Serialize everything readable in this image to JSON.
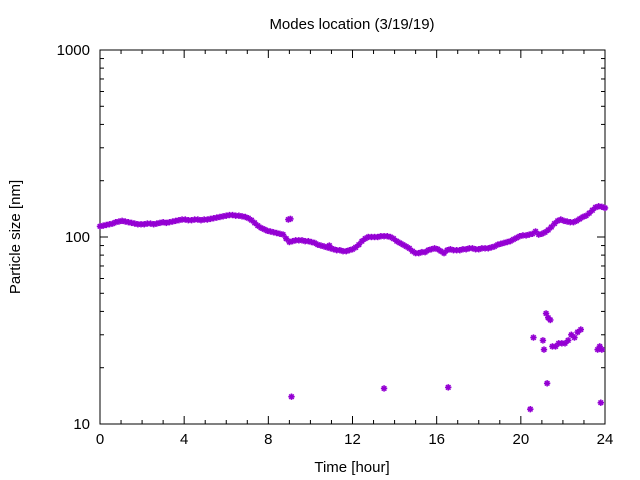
{
  "chart_data": {
    "type": "scatter",
    "title": "Modes location (3/19/19)",
    "xlabel": "Time [hour]",
    "ylabel": "Particle size [nm]",
    "xlim": [
      0,
      24
    ],
    "ylim": [
      10,
      1000
    ],
    "yscale": "log",
    "x_ticks": [
      0,
      4,
      8,
      12,
      16,
      20,
      24
    ],
    "x_tick_labels": [
      "0",
      "4",
      "8",
      "12",
      "16",
      "20",
      "24"
    ],
    "y_ticks": [
      10,
      100,
      1000
    ],
    "y_tick_labels": [
      "10",
      "100",
      "1000"
    ],
    "grid": false,
    "marker_color": "#9400d3",
    "series": [
      {
        "points": [
          [
            0.0,
            114
          ],
          [
            0.15,
            115
          ],
          [
            0.3,
            116
          ],
          [
            0.45,
            117
          ],
          [
            0.6,
            118
          ],
          [
            0.75,
            120
          ],
          [
            0.9,
            121
          ],
          [
            1.05,
            122
          ],
          [
            1.2,
            121
          ],
          [
            1.35,
            120
          ],
          [
            1.5,
            119
          ],
          [
            1.65,
            118
          ],
          [
            1.8,
            117
          ],
          [
            1.95,
            117
          ],
          [
            2.1,
            117
          ],
          [
            2.25,
            118
          ],
          [
            2.4,
            118
          ],
          [
            2.55,
            117
          ],
          [
            2.7,
            118
          ],
          [
            2.85,
            119
          ],
          [
            3.0,
            120
          ],
          [
            3.15,
            119
          ],
          [
            3.3,
            120
          ],
          [
            3.45,
            121
          ],
          [
            3.6,
            122
          ],
          [
            3.75,
            123
          ],
          [
            3.9,
            124
          ],
          [
            4.05,
            124
          ],
          [
            4.2,
            123
          ],
          [
            4.35,
            123
          ],
          [
            4.5,
            124
          ],
          [
            4.65,
            124
          ],
          [
            4.8,
            123
          ],
          [
            4.95,
            124
          ],
          [
            5.1,
            124
          ],
          [
            5.25,
            125
          ],
          [
            5.4,
            126
          ],
          [
            5.55,
            127
          ],
          [
            5.7,
            128
          ],
          [
            5.85,
            129
          ],
          [
            6.0,
            130
          ],
          [
            6.15,
            131
          ],
          [
            6.3,
            131
          ],
          [
            6.45,
            130
          ],
          [
            6.6,
            130
          ],
          [
            6.75,
            129
          ],
          [
            6.9,
            128
          ],
          [
            7.05,
            126
          ],
          [
            7.2,
            123
          ],
          [
            7.35,
            119
          ],
          [
            7.5,
            115
          ],
          [
            7.65,
            112
          ],
          [
            7.8,
            110
          ],
          [
            7.95,
            108
          ],
          [
            8.1,
            107
          ],
          [
            8.25,
            106
          ],
          [
            8.4,
            105
          ],
          [
            8.55,
            104
          ],
          [
            8.7,
            103
          ],
          [
            8.85,
            98
          ],
          [
            9.0,
            94
          ],
          [
            9.15,
            95
          ],
          [
            9.3,
            96
          ],
          [
            9.45,
            96
          ],
          [
            9.6,
            96
          ],
          [
            9.75,
            95
          ],
          [
            9.9,
            95
          ],
          [
            10.05,
            94
          ],
          [
            10.2,
            93
          ],
          [
            10.35,
            91
          ],
          [
            10.5,
            90
          ],
          [
            10.65,
            89
          ],
          [
            10.8,
            88
          ],
          [
            10.95,
            87
          ],
          [
            11.1,
            86
          ],
          [
            11.25,
            85
          ],
          [
            11.4,
            85
          ],
          [
            11.55,
            84
          ],
          [
            11.7,
            84
          ],
          [
            11.85,
            85
          ],
          [
            12.0,
            86
          ],
          [
            12.15,
            88
          ],
          [
            12.3,
            91
          ],
          [
            12.45,
            95
          ],
          [
            12.6,
            98
          ],
          [
            12.75,
            100
          ],
          [
            12.9,
            100
          ],
          [
            13.05,
            100
          ],
          [
            13.2,
            100
          ],
          [
            13.35,
            101
          ],
          [
            13.5,
            101
          ],
          [
            13.65,
            101
          ],
          [
            13.8,
            100
          ],
          [
            13.95,
            98
          ],
          [
            14.1,
            95
          ],
          [
            14.25,
            93
          ],
          [
            14.4,
            91
          ],
          [
            14.55,
            89
          ],
          [
            14.7,
            87
          ],
          [
            14.85,
            84
          ],
          [
            15.0,
            82
          ],
          [
            15.15,
            82
          ],
          [
            15.3,
            83
          ],
          [
            15.45,
            83
          ],
          [
            15.6,
            85
          ],
          [
            15.75,
            86
          ],
          [
            15.9,
            87
          ],
          [
            16.05,
            86
          ],
          [
            16.2,
            84
          ],
          [
            16.35,
            82
          ],
          [
            16.5,
            85
          ],
          [
            16.65,
            86
          ],
          [
            16.8,
            85
          ],
          [
            16.95,
            85
          ],
          [
            17.1,
            85
          ],
          [
            17.25,
            86
          ],
          [
            17.4,
            86
          ],
          [
            17.55,
            87
          ],
          [
            17.7,
            87
          ],
          [
            17.85,
            86
          ],
          [
            18.0,
            86
          ],
          [
            18.15,
            87
          ],
          [
            18.3,
            87
          ],
          [
            18.45,
            87
          ],
          [
            18.6,
            88
          ],
          [
            18.75,
            89
          ],
          [
            18.9,
            91
          ],
          [
            19.05,
            92
          ],
          [
            19.2,
            93
          ],
          [
            19.35,
            94
          ],
          [
            19.5,
            95
          ],
          [
            19.65,
            97
          ],
          [
            19.8,
            99
          ],
          [
            19.95,
            101
          ],
          [
            20.1,
            102
          ],
          [
            20.25,
            102
          ],
          [
            20.4,
            103
          ],
          [
            20.55,
            104
          ],
          [
            20.7,
            107
          ],
          [
            20.85,
            103
          ],
          [
            21.0,
            104
          ],
          [
            21.15,
            106
          ],
          [
            21.3,
            109
          ],
          [
            21.45,
            113
          ],
          [
            21.6,
            118
          ],
          [
            21.75,
            122
          ],
          [
            21.9,
            124
          ],
          [
            22.05,
            122
          ],
          [
            22.2,
            121
          ],
          [
            22.35,
            120
          ],
          [
            22.5,
            120
          ],
          [
            22.65,
            122
          ],
          [
            22.8,
            125
          ],
          [
            22.95,
            128
          ],
          [
            23.1,
            130
          ],
          [
            23.25,
            134
          ],
          [
            23.4,
            139
          ],
          [
            23.55,
            144
          ],
          [
            23.7,
            146
          ],
          [
            23.85,
            145
          ],
          [
            24.0,
            143
          ],
          [
            8.95,
            124
          ],
          [
            9.05,
            125
          ],
          [
            10.9,
            90
          ],
          [
            20.6,
            29
          ],
          [
            21.05,
            28
          ],
          [
            21.1,
            25
          ],
          [
            21.2,
            39
          ],
          [
            21.3,
            37
          ],
          [
            21.4,
            36
          ],
          [
            21.5,
            26
          ],
          [
            21.65,
            26
          ],
          [
            21.8,
            27
          ],
          [
            21.95,
            27
          ],
          [
            22.1,
            27
          ],
          [
            22.25,
            28
          ],
          [
            22.4,
            30
          ],
          [
            22.55,
            29
          ],
          [
            22.7,
            31
          ],
          [
            22.85,
            32
          ],
          [
            23.65,
            25
          ],
          [
            23.75,
            26
          ],
          [
            23.85,
            25
          ],
          [
            9.1,
            14
          ],
          [
            13.5,
            15.5
          ],
          [
            16.55,
            15.7
          ],
          [
            20.45,
            12
          ],
          [
            21.25,
            16.5
          ],
          [
            23.8,
            13
          ]
        ]
      }
    ]
  }
}
